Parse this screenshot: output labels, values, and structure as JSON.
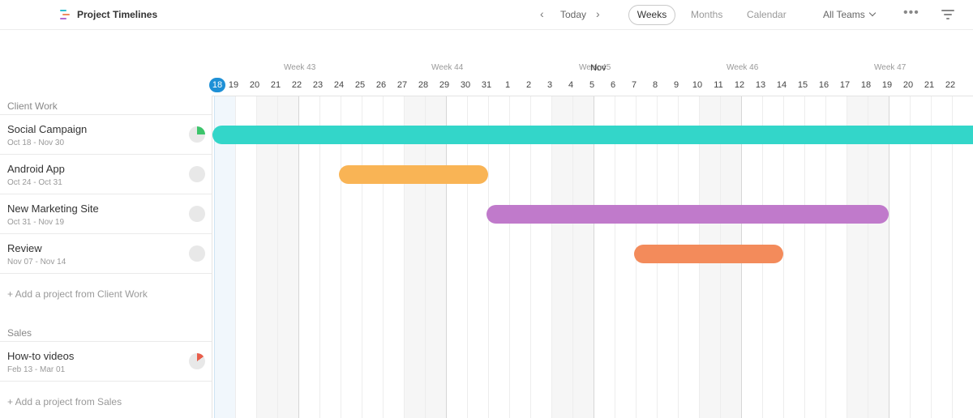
{
  "app": {
    "title": "Project Timelines",
    "logo_icon": "timeline-logo-icon",
    "logo_colors": [
      "#2fbfcf",
      "#f08a5d",
      "#b36bd1"
    ]
  },
  "nav": {
    "prev_icon": "chevron-left-icon",
    "today_label": "Today",
    "next_icon": "chevron-right-icon"
  },
  "views": {
    "weeks": "Weeks",
    "months": "Months",
    "calendar": "Calendar",
    "active": "Weeks"
  },
  "team_filter": {
    "selected": "All Teams",
    "icon": "chevron-down-icon"
  },
  "toolbar": {
    "more_icon": "more-icon",
    "filter_icon": "filter-icon"
  },
  "timeline": {
    "weeks": [
      "Week 43",
      "Week 44",
      "Week 45",
      "Week 46",
      "Week 47"
    ],
    "month_label": "Nov",
    "days": [
      "18",
      "19",
      "20",
      "21",
      "22",
      "23",
      "24",
      "25",
      "26",
      "27",
      "28",
      "29",
      "30",
      "31",
      "1",
      "2",
      "3",
      "4",
      "5",
      "6",
      "7",
      "8",
      "9",
      "10",
      "11",
      "12",
      "13",
      "14",
      "15",
      "16",
      "17",
      "18",
      "19",
      "20",
      "21",
      "22"
    ],
    "today": "18",
    "today_color": "#1e90d6"
  },
  "groups": [
    {
      "name": "Client Work",
      "add_label": "+  Add a project from Client Work",
      "projects": [
        {
          "name": "Social Campaign",
          "dates": "Oct 18 - Nov 30",
          "color": "#33d6c9",
          "progress": 0.25,
          "progress_color": "#3cc46b"
        },
        {
          "name": "Android App",
          "dates": "Oct 24 - Oct 31",
          "color": "#f9b455",
          "progress": 0,
          "progress_color": "#e8e8e8"
        },
        {
          "name": "New Marketing Site",
          "dates": "Oct 31 - Nov 19",
          "color": "#c07acb",
          "progress": 0,
          "progress_color": "#e8e8e8"
        },
        {
          "name": "Review",
          "dates": "Nov 07 - Nov 14",
          "color": "#f38b5b",
          "progress": 0,
          "progress_color": "#e8e8e8"
        }
      ]
    },
    {
      "name": "Sales",
      "add_label": "+  Add a project from Sales",
      "projects": [
        {
          "name": "How-to videos",
          "dates": "Feb 13 - Mar 01",
          "color": "#e85d4a",
          "progress": 0.15,
          "progress_color": "#e85d4a"
        }
      ]
    }
  ]
}
